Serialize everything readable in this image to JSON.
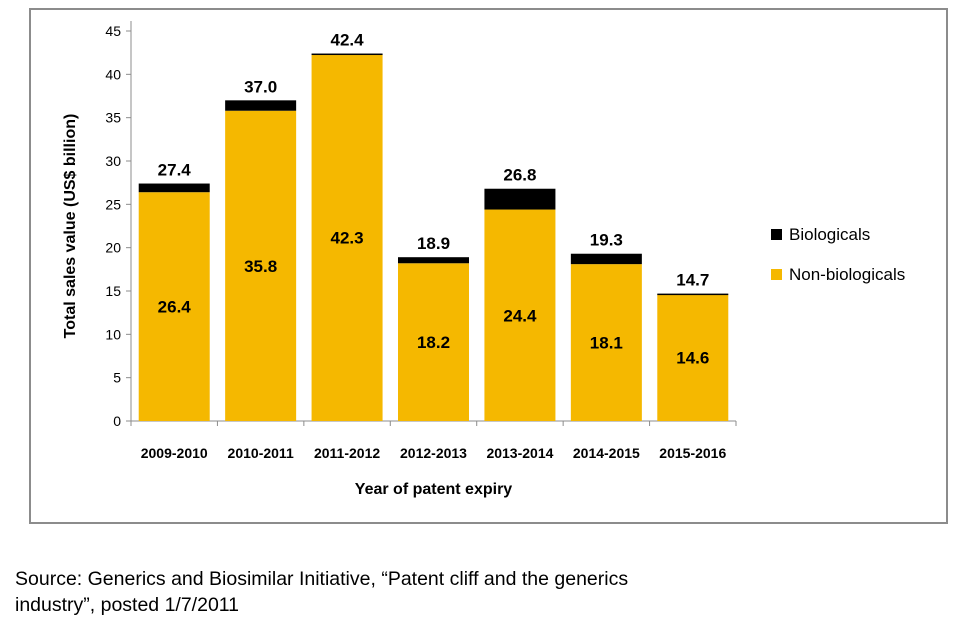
{
  "chart_data": {
    "type": "bar",
    "stacked": true,
    "categories": [
      "2009-2010",
      "2010-2011",
      "2011-2012",
      "2012-2013",
      "2013-2014",
      "2014-2015",
      "2015-2016"
    ],
    "series": [
      {
        "name": "Non-biologicals",
        "color": "#f5b800",
        "values": [
          26.4,
          35.8,
          42.3,
          18.2,
          24.4,
          18.1,
          14.6
        ]
      },
      {
        "name": "Biologicals",
        "color": "#000000",
        "values": [
          1.0,
          1.2,
          0.1,
          0.7,
          2.4,
          1.2,
          0.1
        ]
      }
    ],
    "totals": [
      "27.4",
      "37.0",
      "42.4",
      "18.9",
      "26.8",
      "19.3",
      "14.7"
    ],
    "segment_labels": [
      "26.4",
      "35.8",
      "42.3",
      "18.2",
      "24.4",
      "18.1",
      "14.6"
    ],
    "y_ticks": [
      "0",
      "5",
      "10",
      "15",
      "20",
      "25",
      "30",
      "35",
      "40",
      "45"
    ],
    "title": "",
    "xlabel": "Year of patent expiry",
    "ylabel": "Total sales value (US$ billion)",
    "ylim": [
      0,
      45
    ],
    "grid": false,
    "legend_position": "right",
    "legend": [
      {
        "label": "Biologicals",
        "color": "#000000"
      },
      {
        "label": "Non-biologicals",
        "color": "#f5b800"
      }
    ]
  },
  "caption": {
    "line1": "Source: Generics and Biosimilar Initiative, “Patent cliff and the generics",
    "line2": "industry”, posted 1/7/2011"
  }
}
